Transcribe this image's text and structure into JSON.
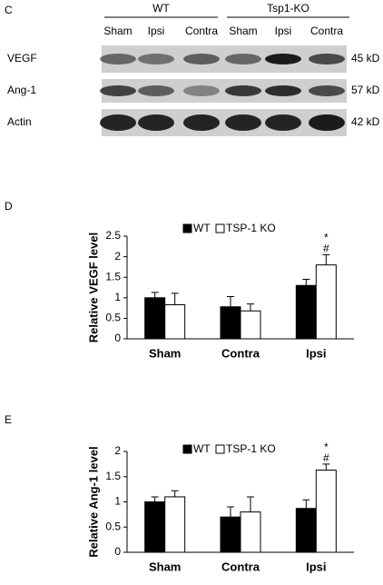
{
  "blot": {
    "panel": "C",
    "groups": [
      "WT",
      "Tsp1-KO"
    ],
    "lanes": [
      "Sham",
      "Ipsi",
      "Contra",
      "Sham",
      "Ipsi",
      "Contra"
    ],
    "rows": [
      {
        "label": "VEGF",
        "size": "45 kD"
      },
      {
        "label": "Ang-1",
        "size": "57 kD"
      },
      {
        "label": "Actin",
        "size": "42 kD"
      }
    ]
  },
  "chart_data": [
    {
      "panel": "D",
      "type": "bar",
      "ylabel": "Relative VEGF level",
      "categories": [
        "Sham",
        "Contra",
        "Ipsi"
      ],
      "series": [
        {
          "name": "WT",
          "color": "#000000",
          "values": [
            1.0,
            0.78,
            1.3
          ],
          "errors": [
            0.13,
            0.25,
            0.15
          ]
        },
        {
          "name": "TSP-1 KO",
          "color": "#ffffff",
          "values": [
            0.83,
            0.68,
            1.8
          ],
          "errors": [
            0.28,
            0.17,
            0.25
          ]
        }
      ],
      "ylim": [
        0,
        2.5
      ],
      "yticks": [
        0,
        0.5,
        1,
        1.5,
        2,
        2.5
      ],
      "annotations": [
        "*",
        "#"
      ]
    },
    {
      "panel": "E",
      "type": "bar",
      "ylabel": "Relative Ang-1 level",
      "categories": [
        "Sham",
        "Contra",
        "Ipsi"
      ],
      "series": [
        {
          "name": "WT",
          "color": "#000000",
          "values": [
            1.0,
            0.7,
            0.87
          ],
          "errors": [
            0.1,
            0.2,
            0.17
          ]
        },
        {
          "name": "TSP-1 KO",
          "color": "#ffffff",
          "values": [
            1.1,
            0.8,
            1.63
          ],
          "errors": [
            0.12,
            0.3,
            0.12
          ]
        }
      ],
      "ylim": [
        0,
        2
      ],
      "yticks": [
        0,
        0.5,
        1,
        1.5,
        2
      ],
      "annotations": [
        "*",
        "#"
      ]
    }
  ]
}
